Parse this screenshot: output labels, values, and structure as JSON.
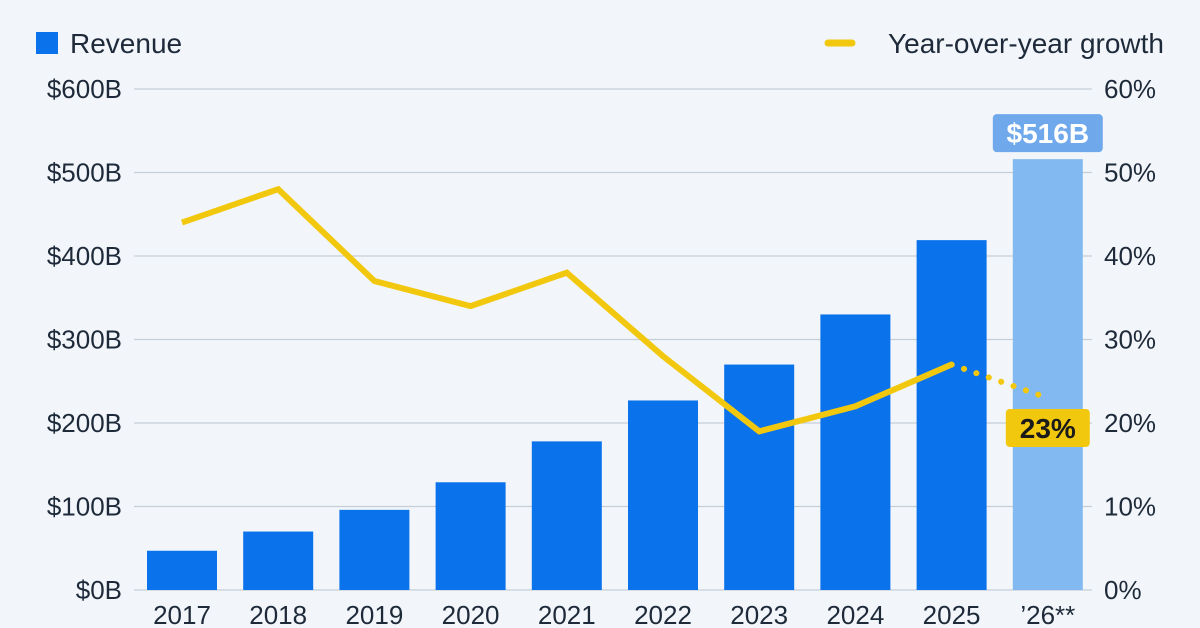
{
  "legend": {
    "revenue_label": "Revenue",
    "growth_label": "Year-over-year growth"
  },
  "colors": {
    "bar": "#0a72ea",
    "bar_forecast": "#82b9f0",
    "growth_line": "#f2c80f",
    "grid": "#c5ced8",
    "text": "#1e2a3a",
    "background": "#f2f6fa"
  },
  "chart_data": {
    "type": "bar",
    "categories": [
      "2017",
      "2018",
      "2019",
      "2020",
      "2021",
      "2022",
      "2023",
      "2024",
      "2025",
      "’26**"
    ],
    "series": [
      {
        "name": "Revenue",
        "axis": "left",
        "values": [
          47,
          70,
          96,
          129,
          178,
          227,
          270,
          330,
          419,
          516
        ],
        "forecast_from_index": 9
      },
      {
        "name": "Year-over-year growth",
        "type": "line",
        "axis": "right",
        "values": [
          44,
          48,
          37,
          34,
          38,
          28,
          19,
          22,
          27,
          23
        ],
        "dotted_from_index": 8
      }
    ],
    "y_left": {
      "ylim": [
        0,
        600
      ],
      "ticks": [
        0,
        100,
        200,
        300,
        400,
        500,
        600
      ],
      "tick_labels": [
        "$0B",
        "$100B",
        "$200B",
        "$300B",
        "$400B",
        "$500B",
        "$600B"
      ]
    },
    "y_right": {
      "ylim": [
        0,
        60
      ],
      "ticks": [
        0,
        10,
        20,
        30,
        40,
        50,
        60
      ],
      "tick_labels": [
        "0%",
        "10%",
        "20%",
        "30%",
        "40%",
        "50%",
        "60%"
      ]
    },
    "annotations": [
      {
        "series": "Revenue",
        "index": 9,
        "text": "$516B"
      },
      {
        "series": "Year-over-year growth",
        "index": 9,
        "text": "23%"
      }
    ],
    "grid": true,
    "legend_position": "top"
  }
}
